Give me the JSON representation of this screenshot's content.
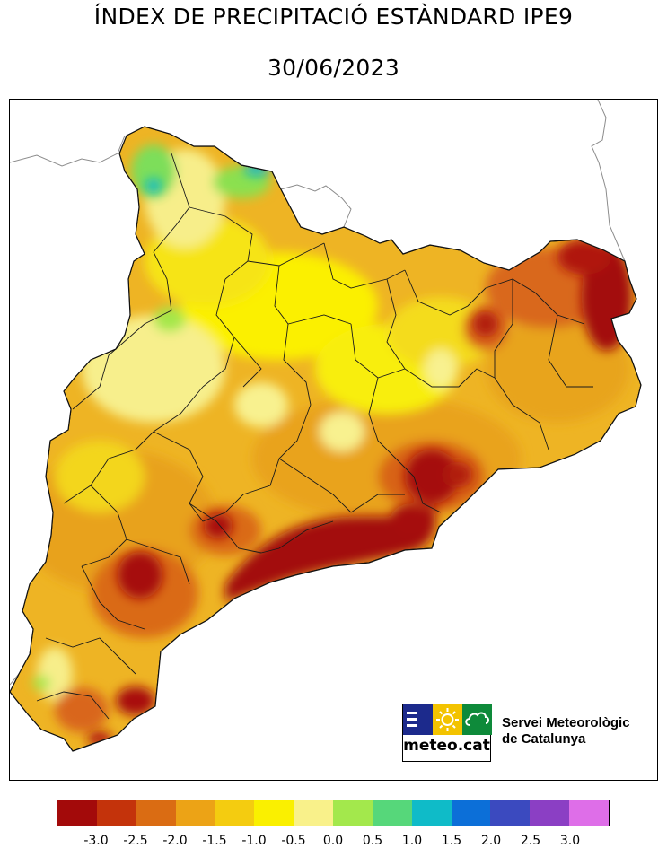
{
  "header": {
    "title": "ÍNDEX DE PRECIPITACIÓ ESTÀNDARD IPE9",
    "date": "30/06/2023"
  },
  "logo": {
    "brand": "meteo.cat",
    "service_line1": "Servei Meteorològic",
    "service_line2": "de Catalunya",
    "colors": {
      "blue": "#1c2a8c",
      "yellow": "#f3c300",
      "green": "#0e8a3a"
    },
    "icons": [
      "bars-icon",
      "sun-icon",
      "cloud-icon"
    ]
  },
  "map": {
    "region": "Catalunya",
    "palette": {
      "land_base": "#f1bf22",
      "very_dry": "#a30a0a",
      "dry": "#d2561d",
      "moderately_dry": "#e9a31a",
      "normal": "#fbf400",
      "slightly_humid": "#fbf58a",
      "humid": "#a4e74a",
      "very_humid": "#56d77a",
      "extremely_humid": "#10b9c9"
    }
  },
  "legend": {
    "colors": [
      "#a30a0a",
      "#c4330b",
      "#da6c13",
      "#eca316",
      "#f4cc10",
      "#faf000",
      "#f9f18a",
      "#a3e84c",
      "#56d77a",
      "#0fbbc8",
      "#0c6fd8",
      "#3b4abf",
      "#8b3fc4",
      "#de6ee8"
    ],
    "ticks": [
      "-3.0",
      "-2.5",
      "-2.0",
      "-1.5",
      "-1.0",
      "-0.5",
      "0.0",
      "0.5",
      "1.0",
      "1.5",
      "2.0",
      "2.5",
      "3.0"
    ]
  }
}
